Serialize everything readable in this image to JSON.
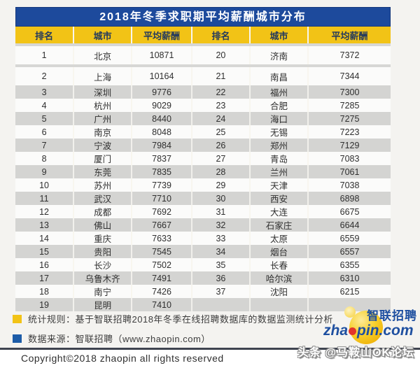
{
  "chart_data": {
    "type": "table",
    "title": "2018年冬季求职期平均薪酬城市分布",
    "columns": [
      "排名",
      "城市",
      "平均薪酬",
      "排名",
      "城市",
      "平均薪酬"
    ],
    "rows": [
      [
        "1",
        "北京",
        "10871",
        "20",
        "济南",
        "7372"
      ],
      [
        "2",
        "上海",
        "10164",
        "21",
        "南昌",
        "7344"
      ],
      [
        "3",
        "深圳",
        "9776",
        "22",
        "福州",
        "7300"
      ],
      [
        "4",
        "杭州",
        "9029",
        "23",
        "合肥",
        "7285"
      ],
      [
        "5",
        "广州",
        "8440",
        "24",
        "海口",
        "7275"
      ],
      [
        "6",
        "南京",
        "8048",
        "25",
        "无锡",
        "7223"
      ],
      [
        "7",
        "宁波",
        "7984",
        "26",
        "郑州",
        "7129"
      ],
      [
        "8",
        "厦门",
        "7837",
        "27",
        "青岛",
        "7083"
      ],
      [
        "9",
        "东莞",
        "7835",
        "28",
        "兰州",
        "7061"
      ],
      [
        "10",
        "苏州",
        "7739",
        "29",
        "天津",
        "7038"
      ],
      [
        "11",
        "武汉",
        "7710",
        "30",
        "西安",
        "6898"
      ],
      [
        "12",
        "成都",
        "7692",
        "31",
        "大连",
        "6675"
      ],
      [
        "13",
        "佛山",
        "7667",
        "32",
        "石家庄",
        "6644"
      ],
      [
        "14",
        "重庆",
        "7633",
        "33",
        "太原",
        "6559"
      ],
      [
        "15",
        "贵阳",
        "7545",
        "34",
        "烟台",
        "6557"
      ],
      [
        "16",
        "长沙",
        "7502",
        "35",
        "长春",
        "6355"
      ],
      [
        "17",
        "乌鲁木齐",
        "7491",
        "36",
        "哈尔滨",
        "6310"
      ],
      [
        "18",
        "南宁",
        "7426",
        "37",
        "沈阳",
        "6215"
      ],
      [
        "19",
        "昆明",
        "7410",
        "",
        "",
        ""
      ]
    ]
  },
  "footer": {
    "stat_rule": "统计规则：基于智联招聘2018年冬季在线招聘数据库的数据监测统计分析",
    "data_source": "数据来源：智联招聘（www.zhaopin.com）",
    "logo_brand_cn": "智联招聘",
    "logo_en_prefix": "zha",
    "logo_en_suffix": "pin.com",
    "copyright": "Copyright©2018  zhaopin all rights reserved",
    "watermark": "头条 @马鞍山OK论坛"
  },
  "colors": {
    "title_bg": "#1d4a9c",
    "header_bg": "#f2c316",
    "row_stripe_gray": "#d4d4d2",
    "bullet_yellow": "#f2c316",
    "bullet_blue": "#1d5ca8",
    "logo_blue": "#1e4fa0",
    "logo_dot_red": "#e2342b",
    "logo_circle_yellow": "#f0b40c"
  }
}
